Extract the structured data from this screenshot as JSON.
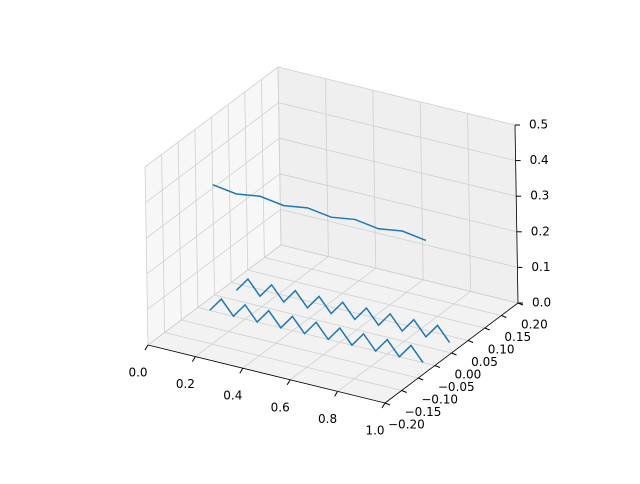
{
  "chart_data": {
    "type": "line3d",
    "xlim": [
      0,
      1
    ],
    "ylim": [
      -0.2,
      0.2
    ],
    "zlim": [
      0,
      0.5
    ],
    "xticks": [
      {
        "value": 0,
        "label": "0.0"
      },
      0.2,
      0.4,
      0.6,
      0.8,
      {
        "value": 1,
        "label": "1.0"
      }
    ],
    "yticks": [
      {
        "value": -0.2,
        "label": "−0.20"
      },
      {
        "value": -0.15,
        "label": "−0.15"
      },
      {
        "value": -0.1,
        "label": "−0.10"
      },
      {
        "value": -0.05,
        "label": "−0.05"
      },
      {
        "value": 0,
        "label": "0.00"
      },
      {
        "value": 0.05,
        "label": "0.05"
      },
      {
        "value": 0.1,
        "label": "0.10"
      },
      {
        "value": 0.15,
        "label": "0.15"
      },
      {
        "value": 0.2,
        "label": "0.20"
      }
    ],
    "zticks": [
      {
        "value": 0,
        "label": "0.0"
      },
      0.1,
      0.2,
      0.3,
      0.4,
      0.5
    ],
    "grid": true,
    "series": [
      {
        "color": "#1f77b4",
        "x": [
          0.0,
          0.1,
          0.2,
          0.3,
          0.4,
          0.5,
          0.6,
          0.7,
          0.8,
          0.9
        ],
        "y": [
          0,
          0,
          0,
          0,
          0,
          0,
          0,
          0,
          0,
          0
        ],
        "z": [
          0.31,
          0.3,
          0.31,
          0.3,
          0.31,
          0.3,
          0.31,
          0.3,
          0.31,
          0.3
        ]
      },
      {
        "color": "#1f77b4",
        "x": [
          0.05,
          0.1,
          0.15,
          0.2,
          0.25,
          0.3,
          0.35,
          0.4,
          0.45,
          0.5,
          0.55,
          0.6,
          0.65,
          0.7,
          0.75,
          0.8,
          0.85,
          0.9,
          0.95
        ],
        "y": [
          0.03,
          0.03,
          0.03,
          0.03,
          0.03,
          0.03,
          0.03,
          0.03,
          0.03,
          0.03,
          0.03,
          0.03,
          0.03,
          0.03,
          0.03,
          0.03,
          0.03,
          0.03,
          0.03
        ],
        "z": [
          0.0,
          0.04,
          0.0,
          0.04,
          0.0,
          0.04,
          0.0,
          0.04,
          0.0,
          0.04,
          0.0,
          0.04,
          0.0,
          0.04,
          0.0,
          0.04,
          0.0,
          0.04,
          0.0
        ]
      },
      {
        "color": "#1f77b4",
        "x": [
          0.05,
          0.1,
          0.15,
          0.2,
          0.25,
          0.3,
          0.35,
          0.4,
          0.45,
          0.5,
          0.55,
          0.6,
          0.65,
          0.7,
          0.75,
          0.8,
          0.85,
          0.9,
          0.95
        ],
        "y": [
          -0.05,
          -0.05,
          -0.05,
          -0.05,
          -0.05,
          -0.05,
          -0.05,
          -0.05,
          -0.05,
          -0.05,
          -0.05,
          -0.05,
          -0.05,
          -0.05,
          -0.05,
          -0.05,
          -0.05,
          -0.05,
          -0.05
        ],
        "z": [
          0.0,
          0.04,
          0.0,
          0.04,
          0.0,
          0.04,
          0.0,
          0.04,
          0.0,
          0.04,
          0.0,
          0.04,
          0.0,
          0.04,
          0.0,
          0.04,
          0.0,
          0.04,
          0.0
        ]
      }
    ]
  }
}
